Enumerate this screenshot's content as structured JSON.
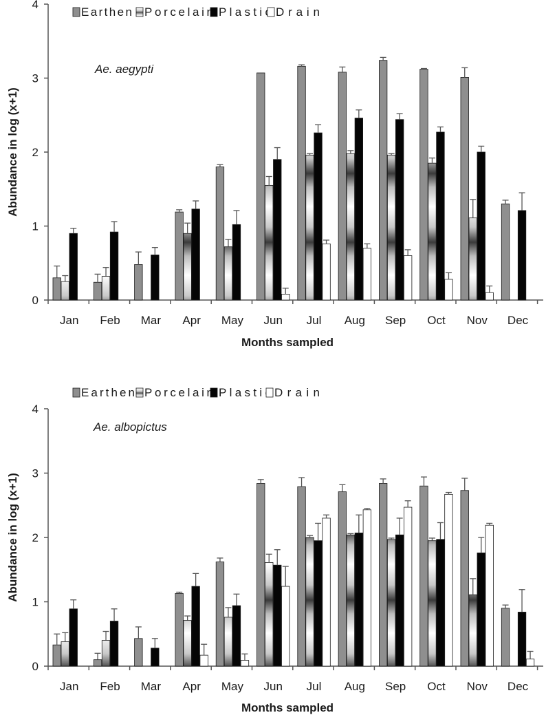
{
  "chart_data": [
    {
      "type": "bar",
      "species_label": "Ae. aegypti",
      "xlabel": "Months sampled",
      "ylabel": "Abundance in log (x+1)",
      "ylim": [
        0,
        4
      ],
      "yticks": [
        "0",
        "1",
        "2",
        "3",
        "4"
      ],
      "legend_placement": "top-left",
      "categories": [
        "Jan",
        "Feb",
        "Mar",
        "Apr",
        "May",
        "Jun",
        "Jul",
        "Aug",
        "Sep",
        "Oct",
        "Nov",
        "Dec"
      ],
      "series": [
        {
          "name": "Earthen",
          "values": [
            0.3,
            0.24,
            0.48,
            1.19,
            1.8,
            3.07,
            3.16,
            3.08,
            3.24,
            3.12,
            3.01,
            1.3
          ],
          "errors": [
            0.16,
            0.11,
            0.17,
            0.03,
            0.03,
            0.0,
            0.02,
            0.07,
            0.04,
            0.01,
            0.13,
            0.05
          ]
        },
        {
          "name": "Porcelain",
          "values": [
            0.25,
            0.32,
            null,
            0.9,
            0.72,
            1.55,
            1.96,
            1.98,
            1.96,
            1.85,
            1.11,
            null
          ],
          "errors": [
            0.08,
            0.12,
            null,
            0.14,
            0.1,
            0.12,
            0.02,
            0.04,
            0.02,
            0.07,
            0.25,
            null
          ]
        },
        {
          "name": "Plastic",
          "values": [
            0.9,
            0.92,
            0.61,
            1.23,
            1.02,
            1.9,
            2.26,
            2.46,
            2.44,
            2.27,
            2.0,
            1.21
          ],
          "errors": [
            0.07,
            0.14,
            0.1,
            0.11,
            0.19,
            0.16,
            0.11,
            0.11,
            0.08,
            0.07,
            0.08,
            0.24
          ]
        },
        {
          "name": "Drain",
          "values": [
            null,
            null,
            null,
            null,
            null,
            0.08,
            0.76,
            0.7,
            0.6,
            0.28,
            0.1,
            null
          ],
          "errors": [
            null,
            null,
            null,
            null,
            null,
            0.08,
            0.05,
            0.06,
            0.08,
            0.09,
            0.09,
            null
          ]
        }
      ]
    },
    {
      "type": "bar",
      "species_label": "Ae. albopictus",
      "xlabel": "Months sampled",
      "ylabel": "Abundance in log (x+1)",
      "ylim": [
        0,
        4
      ],
      "yticks": [
        "0",
        "1",
        "2",
        "3",
        "4"
      ],
      "legend_placement": "top-left",
      "categories": [
        "Jan",
        "Feb",
        "Mar",
        "Apr",
        "May",
        "Jun",
        "Jul",
        "Aug",
        "Sep",
        "Oct",
        "Nov",
        "Dec"
      ],
      "series": [
        {
          "name": "Earthen",
          "values": [
            0.33,
            0.1,
            0.43,
            1.13,
            1.62,
            2.84,
            2.79,
            2.71,
            2.84,
            2.8,
            2.73,
            0.9
          ],
          "errors": [
            0.17,
            0.1,
            0.18,
            0.02,
            0.06,
            0.06,
            0.14,
            0.11,
            0.07,
            0.14,
            0.19,
            0.05
          ]
        },
        {
          "name": "Porcelain",
          "values": [
            0.38,
            0.4,
            null,
            0.71,
            0.76,
            1.61,
            2.0,
            2.04,
            1.97,
            1.95,
            1.11,
            null
          ],
          "errors": [
            0.14,
            0.14,
            null,
            0.07,
            0.15,
            0.13,
            0.03,
            0.02,
            0.02,
            0.04,
            0.25,
            null
          ]
        },
        {
          "name": "Plastic",
          "values": [
            0.89,
            0.7,
            0.28,
            1.24,
            0.94,
            1.57,
            1.95,
            2.07,
            2.04,
            1.97,
            1.76,
            0.84
          ],
          "errors": [
            0.14,
            0.19,
            0.15,
            0.2,
            0.18,
            0.24,
            0.27,
            0.28,
            0.26,
            0.26,
            0.24,
            0.35
          ]
        },
        {
          "name": "Drain",
          "values": [
            null,
            null,
            null,
            0.17,
            0.09,
            1.24,
            2.3,
            2.43,
            2.47,
            2.67,
            2.19,
            0.11
          ],
          "errors": [
            null,
            null,
            null,
            0.17,
            0.1,
            0.31,
            0.05,
            0.02,
            0.1,
            0.03,
            0.03,
            0.12
          ]
        }
      ]
    }
  ],
  "colors": {
    "earthen": "#8f8f8f",
    "plastic": "#050505",
    "drain": "#ffffff",
    "axis": "#555555",
    "error_bar": "#555555"
  }
}
